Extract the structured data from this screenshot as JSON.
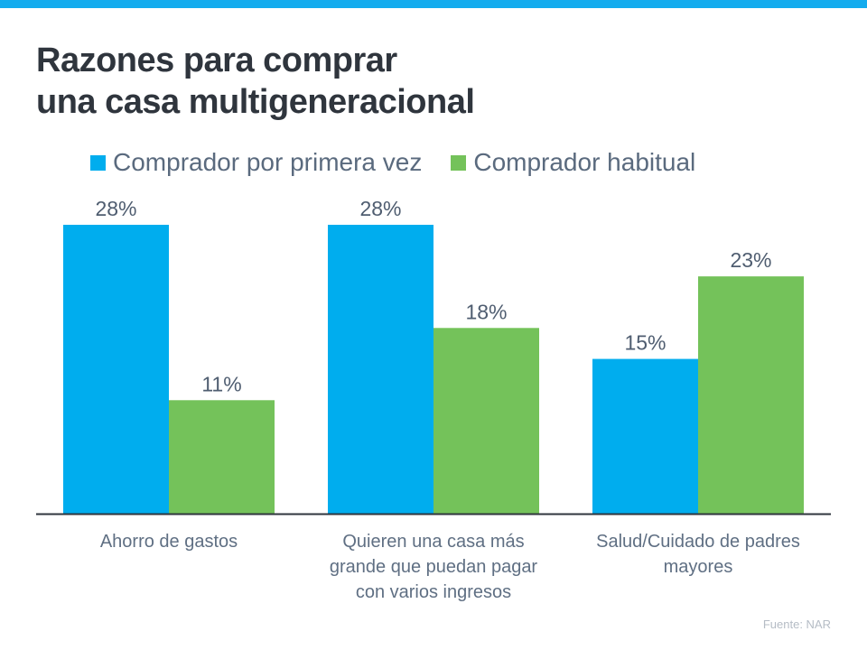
{
  "title_lines": [
    "Razones para comprar",
    "una casa multigeneracional"
  ],
  "legend": [
    {
      "label": "Comprador por primera vez",
      "color": "#00adee"
    },
    {
      "label": "Comprador habitual",
      "color": "#74c25a"
    }
  ],
  "source": "Fuente: NAR",
  "chart_data": {
    "type": "bar",
    "title": "Razones para comprar una casa multigeneracional",
    "xlabel": "",
    "ylabel": "",
    "ylim": [
      0,
      28
    ],
    "grid": false,
    "legend_position": "top",
    "categories": [
      [
        "Ahorro de gastos"
      ],
      [
        "Quieren una casa más",
        "grande que puedan pagar",
        "con varios ingresos"
      ],
      [
        "Salud/Cuidado de padres",
        "mayores"
      ]
    ],
    "series": [
      {
        "name": "Comprador por primera vez",
        "color": "#00adee",
        "values": [
          28,
          28,
          15
        ],
        "labels": [
          "28%",
          "28%",
          "15%"
        ]
      },
      {
        "name": "Comprador habitual",
        "color": "#74c25a",
        "values": [
          11,
          18,
          23
        ],
        "labels": [
          "11%",
          "18%",
          "23%"
        ]
      }
    ]
  }
}
